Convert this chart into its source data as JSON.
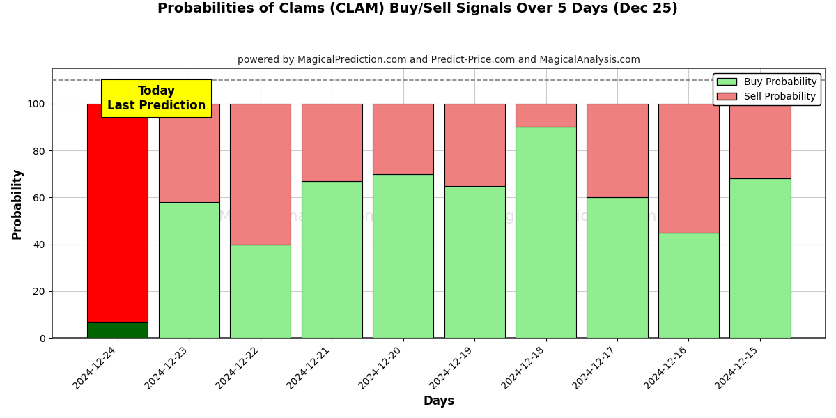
{
  "title": "Probabilities of Clams (CLAM) Buy/Sell Signals Over 5 Days (Dec 25)",
  "subtitle": "powered by MagicalPrediction.com and Predict-Price.com and MagicalAnalysis.com",
  "xlabel": "Days",
  "ylabel": "Probability",
  "categories": [
    "2024-12-24",
    "2024-12-23",
    "2024-12-22",
    "2024-12-21",
    "2024-12-20",
    "2024-12-19",
    "2024-12-18",
    "2024-12-17",
    "2024-12-16",
    "2024-12-15"
  ],
  "buy_values": [
    7,
    58,
    40,
    67,
    70,
    65,
    90,
    60,
    45,
    68
  ],
  "sell_values": [
    93,
    42,
    60,
    33,
    30,
    35,
    10,
    40,
    55,
    32
  ],
  "today_index": 0,
  "buy_color_today": "#006400",
  "sell_color_today": "#FF0000",
  "buy_color_normal": "#90EE90",
  "sell_color_normal": "#F08080",
  "bar_edgecolor": "#000000",
  "today_annotation": "Today\nLast Prediction",
  "today_annotation_bg": "#FFFF00",
  "ylim": [
    0,
    115
  ],
  "yticks": [
    0,
    20,
    40,
    60,
    80,
    100
  ],
  "dashed_line_y": 110,
  "legend_buy": "Buy Probability",
  "legend_sell": "Sell Probability",
  "figsize": [
    12,
    6
  ],
  "dpi": 100,
  "background_color": "#ffffff",
  "grid_color": "#cccccc",
  "bar_width": 0.85
}
